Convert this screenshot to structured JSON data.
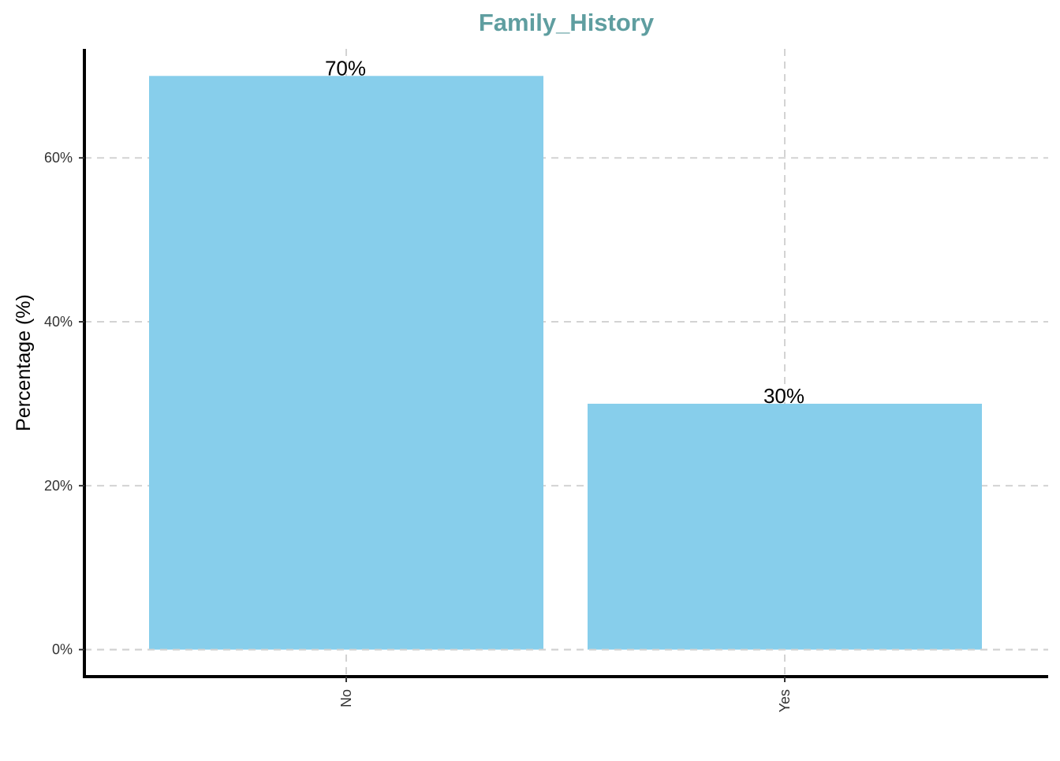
{
  "colors": {
    "title": "#5f9ea0",
    "bar": "#87ceeb"
  },
  "chart_data": {
    "type": "bar",
    "title": "Family_History",
    "xlabel": "",
    "ylabel": "Percentage (%)",
    "categories": [
      "No",
      "Yes"
    ],
    "values": [
      70,
      30
    ],
    "value_labels": [
      "70%",
      "30%"
    ],
    "yticks": [
      0,
      20,
      40,
      60
    ],
    "ytick_labels": [
      "0%",
      "20%",
      "40%",
      "60%"
    ],
    "ylim": [
      -3.3,
      73.3
    ],
    "grid": true,
    "legend": "none"
  }
}
